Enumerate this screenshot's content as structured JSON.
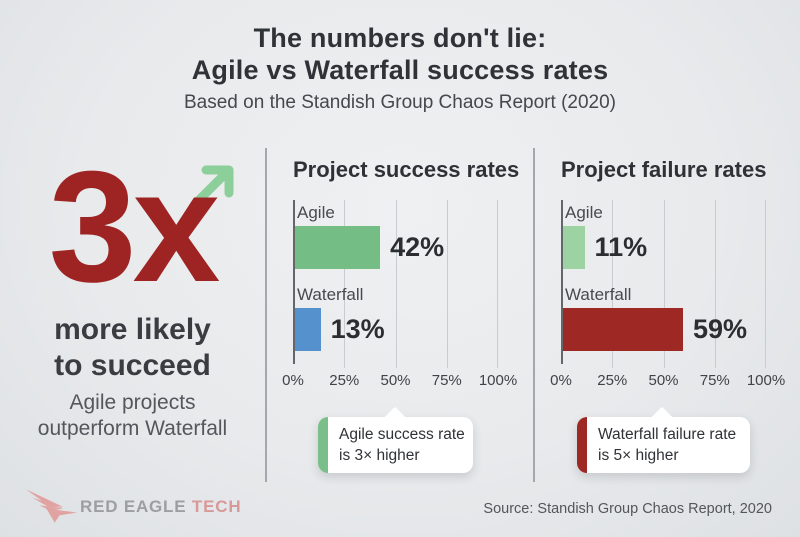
{
  "header": {
    "title_line1": "The numbers don't lie:",
    "title_line2": "Agile vs Waterfall success rates",
    "subtitle": "Based on the Standish Group Chaos Report (2020)"
  },
  "highlight": {
    "multiplier": "3x",
    "caption_line1": "more likely",
    "caption_line2": "to succeed",
    "subcaption_line1": "Agile projects",
    "subcaption_line2": "outperform Waterfall"
  },
  "chart_data": [
    {
      "type": "bar",
      "orientation": "horizontal",
      "title": "Project success rates",
      "categories": [
        "Agile",
        "Waterfall"
      ],
      "values": [
        42,
        13
      ],
      "value_labels": [
        "42%",
        "13%"
      ],
      "bar_colors": [
        "#74bd85",
        "#5591cd"
      ],
      "xlim": [
        0,
        100
      ],
      "x_ticks": [
        "0%",
        "25%",
        "50%",
        "75%",
        "100%"
      ],
      "grid": true,
      "annotation": {
        "line1": "Agile success rate",
        "line2": "is 3× higher",
        "accent_color": "#7abf8a"
      }
    },
    {
      "type": "bar",
      "orientation": "horizontal",
      "title": "Project failure rates",
      "categories": [
        "Agile",
        "Waterfall"
      ],
      "values": [
        11,
        59
      ],
      "value_labels": [
        "11%",
        "59%"
      ],
      "bar_colors": [
        "#9dd3a2",
        "#9e2823"
      ],
      "xlim": [
        0,
        100
      ],
      "x_ticks": [
        "0%",
        "25%",
        "50%",
        "75%",
        "100%"
      ],
      "grid": true,
      "annotation": {
        "line1": "Waterfall failure rate",
        "line2": "is 5× higher",
        "accent_color": "#9e2823"
      }
    }
  ],
  "colors": {
    "multiplier_red": "#9e2423",
    "arrow_green": "#8ccf9b",
    "background": "#e8eaec"
  },
  "footer": {
    "brand_name": "RED EAGLE",
    "brand_suffix": "TECH",
    "source": "Source: Standish Group Chaos Report, 2020"
  }
}
